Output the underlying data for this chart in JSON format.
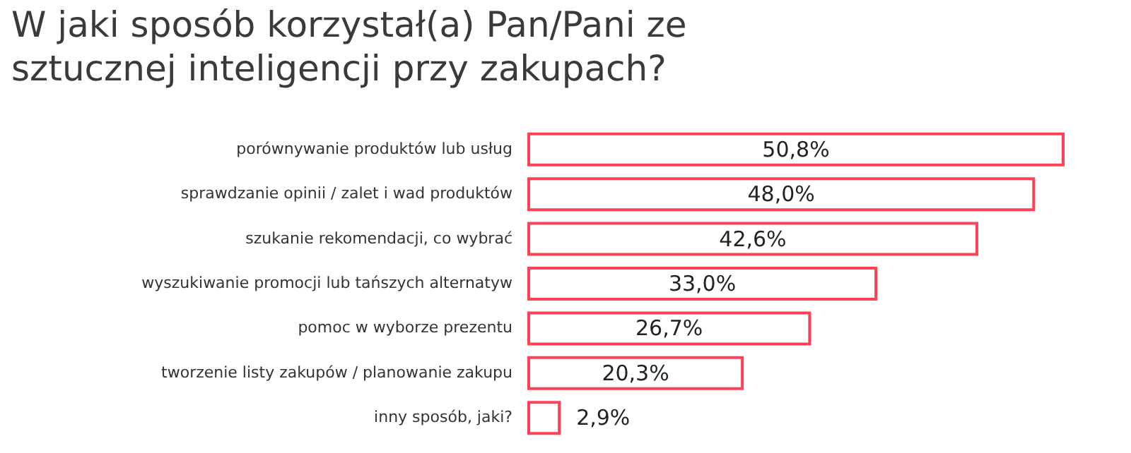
{
  "chart_data": {
    "type": "bar",
    "orientation": "horizontal",
    "title": "W jaki sposób korzystał(a) Pan/Pani ze sztucznej inteligencji przy zakupach?",
    "categories": [
      "porównywanie produktów lub usług",
      "sprawdzanie opinii / zalet i wad produktów",
      "szukanie rekomendacji, co wybrać",
      "wyszukiwanie promocji lub tańszych alternatyw",
      "pomoc w wyborze prezentu",
      "tworzenie listy zakupów / planowanie zakupu",
      "inny sposób, jaki?"
    ],
    "values": [
      50.8,
      48.0,
      42.6,
      33.0,
      26.7,
      20.3,
      2.9
    ],
    "value_labels": [
      "50,8%",
      "48,0%",
      "42,6%",
      "33,0%",
      "26,7%",
      "20,3%",
      "2,9%"
    ],
    "color": "#ff4055"
  }
}
